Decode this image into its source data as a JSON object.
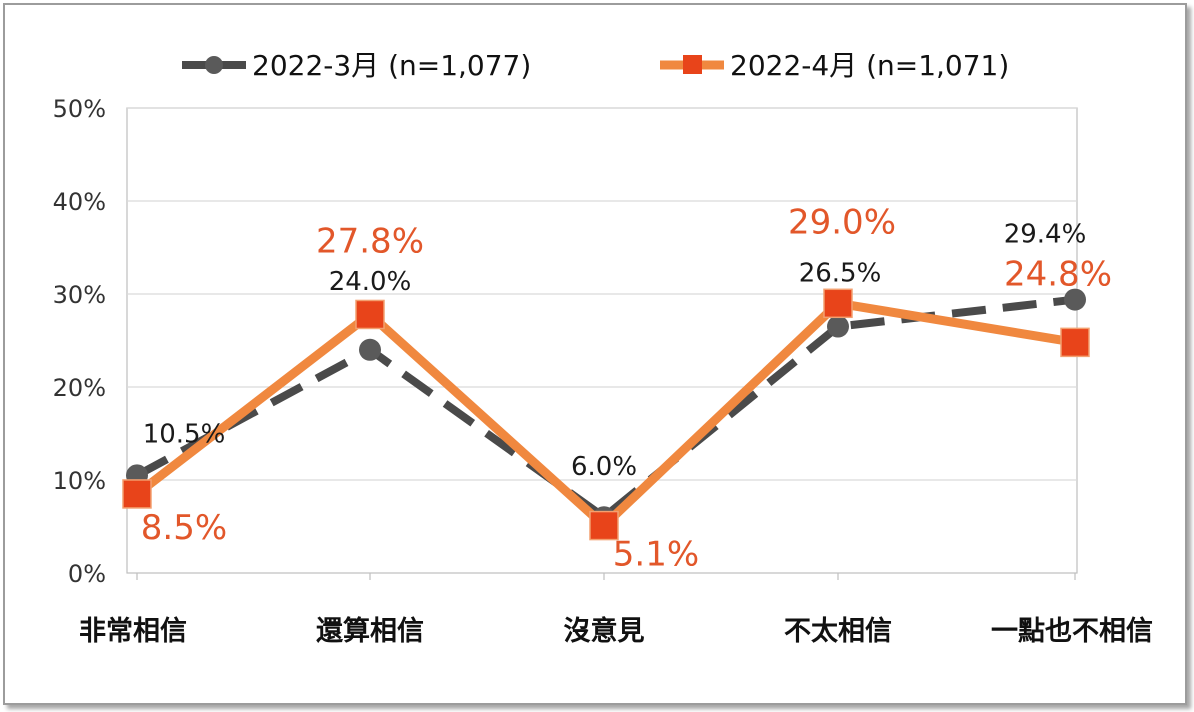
{
  "chart_data": {
    "type": "line",
    "categories": [
      "非常相信",
      "還算相信",
      "沒意見",
      "不太相信",
      "一點也不相信"
    ],
    "ylim": [
      0,
      50
    ],
    "yticks": [
      "0%",
      "10%",
      "20%",
      "30%",
      "40%",
      "50%"
    ],
    "ytick_values": [
      0,
      10,
      20,
      30,
      40,
      50
    ],
    "grid": true,
    "legend": "top",
    "series": [
      {
        "name": "2022-3月 (n=1,077)",
        "values": [
          10.5,
          24.0,
          6.0,
          26.5,
          29.4
        ],
        "labels": [
          "10.5%",
          "24.0%",
          "6.0%",
          "26.5%",
          "29.4%"
        ],
        "color": "#4a4a4a",
        "marker": "circle",
        "line_style": "dashed"
      },
      {
        "name": "2022-4月 (n=1,071)",
        "values": [
          8.5,
          27.8,
          5.1,
          29.0,
          24.8
        ],
        "labels": [
          "8.5%",
          "27.8%",
          "5.1%",
          "29.0%",
          "24.8%"
        ],
        "color": "#f0883f",
        "marker": "square",
        "marker_color": "#e8441a",
        "line_style": "solid"
      }
    ]
  }
}
